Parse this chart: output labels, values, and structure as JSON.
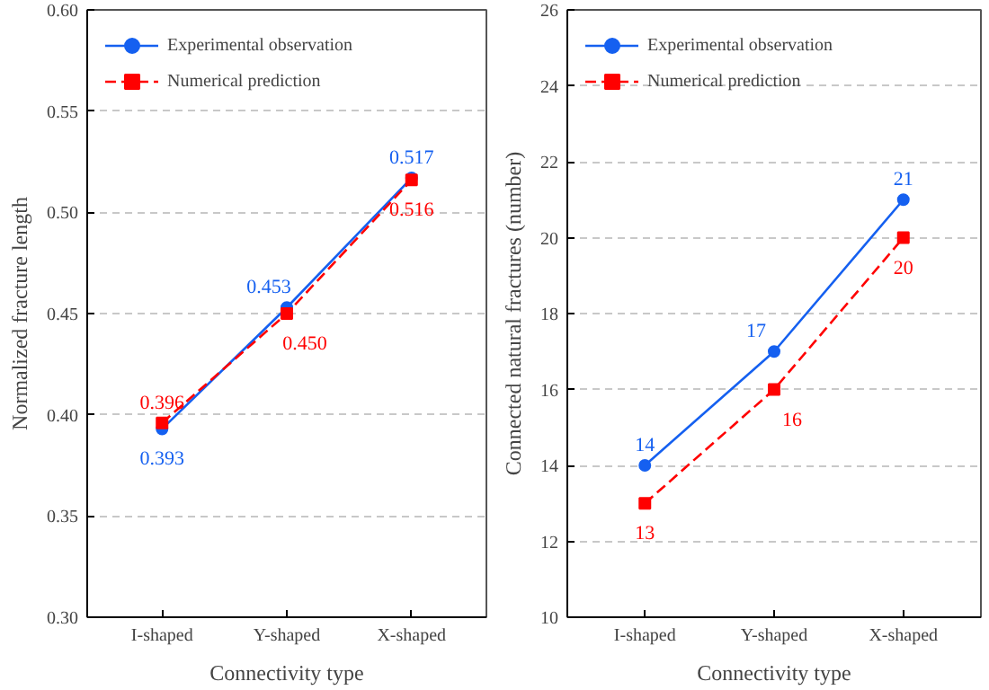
{
  "chart_data": [
    {
      "type": "line",
      "categories": [
        "I-shaped",
        "Y-shaped",
        "X-shaped"
      ],
      "xlabel": "Connectivity type",
      "ylabel": "Normalized fracture length",
      "ylim": [
        0.3,
        0.6
      ],
      "yticks": [
        {
          "value": 0.3,
          "label": "0.30"
        },
        {
          "value": 0.35,
          "label": "0.35"
        },
        {
          "value": 0.4,
          "label": "0.40"
        },
        {
          "value": 0.45,
          "label": "0.45"
        },
        {
          "value": 0.5,
          "label": "0.50"
        },
        {
          "value": 0.55,
          "label": "0.55"
        },
        {
          "value": 0.6,
          "label": "0.60"
        }
      ],
      "grid": "y",
      "legend": "top left",
      "series": [
        {
          "name": "Experimental observation",
          "color": "#1560f0",
          "values": [
            0.393,
            0.453,
            0.517
          ],
          "value_labels": [
            "0.393",
            "0.453",
            "0.517"
          ],
          "marker": "circle",
          "line_style": "solid"
        },
        {
          "name": "Numerical prediction",
          "color": "#ff0000",
          "values": [
            0.396,
            0.45,
            0.516
          ],
          "value_labels": [
            "0.396",
            "0.450",
            "0.516"
          ],
          "marker": "square",
          "line_style": "dashed"
        }
      ]
    },
    {
      "type": "line",
      "categories": [
        "I-shaped",
        "Y-shaped",
        "X-shaped"
      ],
      "xlabel": "Connectivity type",
      "ylabel": "Connected natural fractures (number)",
      "ylim": [
        10,
        26
      ],
      "yticks": [
        10,
        12,
        14,
        16,
        18,
        20,
        22,
        24,
        26
      ],
      "grid": "y",
      "legend": "top left",
      "data_labels": true,
      "series": [
        {
          "name": "Experimental observation",
          "color": "#1560f0",
          "values": [
            14,
            17,
            21
          ],
          "marker": "circle",
          "line_style": "solid"
        },
        {
          "name": "Numerical prediction",
          "color": "#ff0000",
          "values": [
            13,
            16,
            20
          ],
          "marker": "square",
          "line_style": "dashed"
        }
      ]
    }
  ]
}
